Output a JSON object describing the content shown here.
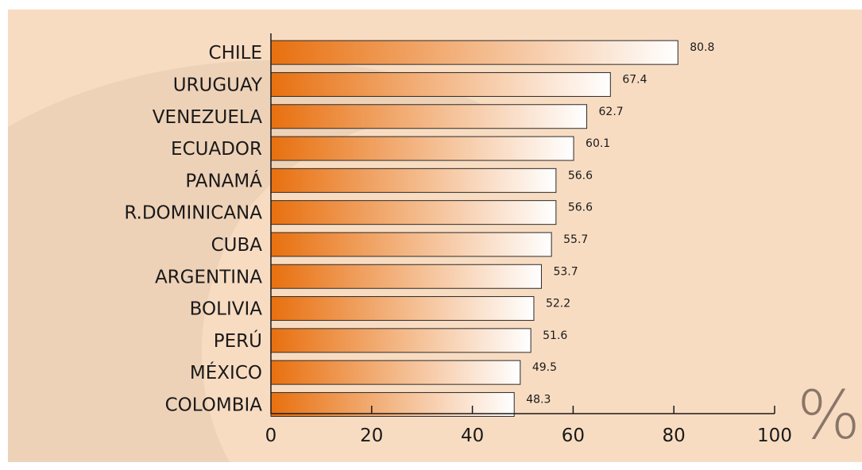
{
  "colors": {
    "background": "#f8dcc2",
    "swirl": "#eed2b8",
    "bar_start": "#e8700f",
    "bar_end": "#ffffff",
    "bar_stroke": "#2a2a2a",
    "axis": "#1a1a1a",
    "unit": "#8a7668"
  },
  "chart_data": {
    "type": "bar",
    "orientation": "horizontal",
    "categories": [
      "CHILE",
      "URUGUAY",
      "VENEZUELA",
      "ECUADOR",
      "PANAMÁ",
      "R.DOMINICANA",
      "CUBA",
      "ARGENTINA",
      "BOLIVIA",
      "PERÚ",
      "MÉXICO",
      "COLOMBIA"
    ],
    "values": [
      80.8,
      67.4,
      62.7,
      60.1,
      56.6,
      56.6,
      55.7,
      53.7,
      52.2,
      51.6,
      49.5,
      48.3
    ],
    "value_labels": [
      "80.8",
      "67.4",
      "62.7",
      "60.1",
      "56.6",
      "56.6",
      "55.7",
      "53.7",
      "52.2",
      "51.6",
      "49.5",
      "48.3"
    ],
    "xlim": [
      0,
      100
    ],
    "xticks": [
      0,
      20,
      40,
      60,
      80,
      100
    ],
    "unit": "%",
    "grid": false,
    "legend": "none"
  }
}
